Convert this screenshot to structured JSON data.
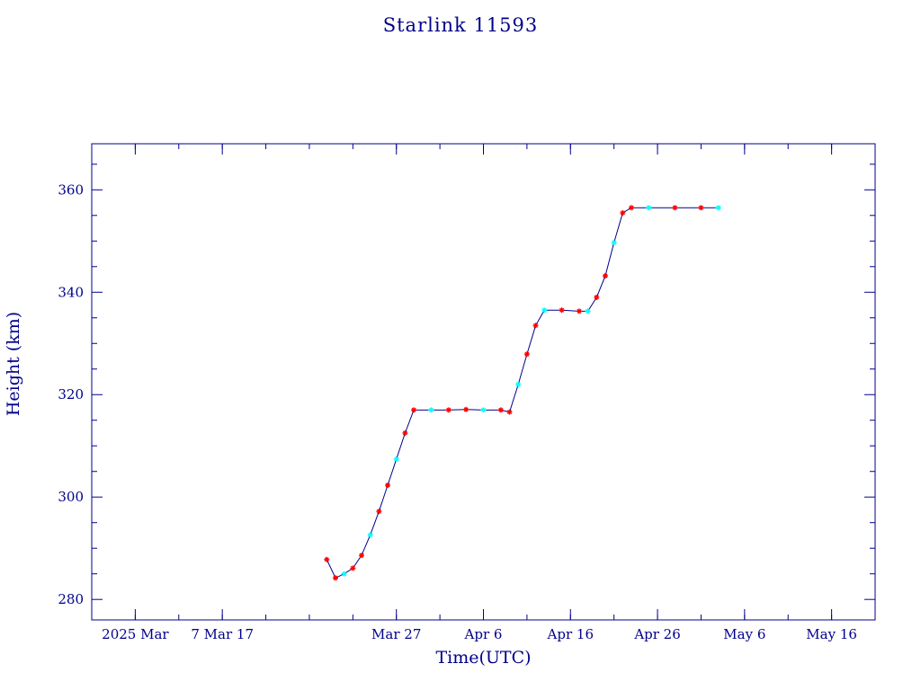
{
  "chart_data": {
    "type": "scatter",
    "title": "Starlink 11593",
    "xlabel": "Time(UTC)",
    "ylabel": "Height (km)",
    "xlim": [
      "2025-02-20",
      "2025-05-21"
    ],
    "ylim": [
      276,
      369
    ],
    "x_ticks": [
      {
        "date": "2025-02-25",
        "label": "2025 Mar"
      },
      {
        "date": "2025-03-07",
        "label": "7 Mar 17"
      },
      {
        "date": "2025-03-27",
        "label": "Mar 27"
      },
      {
        "date": "2025-04-06",
        "label": "Apr  6"
      },
      {
        "date": "2025-04-16",
        "label": "Apr 16"
      },
      {
        "date": "2025-04-26",
        "label": "Apr 26"
      },
      {
        "date": "2025-05-06",
        "label": "May  6"
      },
      {
        "date": "2025-05-16",
        "label": "May 16"
      }
    ],
    "y_ticks": [
      280,
      300,
      320,
      340,
      360
    ],
    "colors": {
      "axis": "#00008b",
      "line": "#00008b",
      "primary_marker": "#ff0000",
      "secondary_marker": "#00ffff"
    },
    "series": [
      {
        "values": [
          [
            "2025-03-19",
            287.8
          ],
          [
            "2025-03-20",
            284.2
          ],
          [
            "2025-03-21",
            285.0
          ],
          [
            "2025-03-22",
            286.1
          ],
          [
            "2025-03-23",
            288.6
          ],
          [
            "2025-03-24",
            292.6
          ],
          [
            "2025-03-25",
            297.2
          ],
          [
            "2025-03-26",
            302.3
          ],
          [
            "2025-03-27",
            307.4
          ],
          [
            "2025-03-28",
            312.5
          ],
          [
            "2025-03-29",
            317.0
          ],
          [
            "2025-03-31",
            317.0
          ],
          [
            "2025-04-02",
            317.0
          ],
          [
            "2025-04-04",
            317.1
          ],
          [
            "2025-04-06",
            317.0
          ],
          [
            "2025-04-08",
            317.0
          ],
          [
            "2025-04-09",
            316.6
          ],
          [
            "2025-04-10",
            322.0
          ],
          [
            "2025-04-11",
            327.9
          ],
          [
            "2025-04-12",
            333.5
          ],
          [
            "2025-04-13",
            336.5
          ],
          [
            "2025-04-15",
            336.5
          ],
          [
            "2025-04-17",
            336.3
          ],
          [
            "2025-04-18",
            336.3
          ],
          [
            "2025-04-19",
            339.0
          ],
          [
            "2025-04-20",
            343.2
          ],
          [
            "2025-04-21",
            349.7
          ],
          [
            "2025-04-22",
            355.5
          ],
          [
            "2025-04-23",
            356.5
          ],
          [
            "2025-04-25",
            356.5
          ],
          [
            "2025-04-28",
            356.5
          ],
          [
            "2025-05-01",
            356.5
          ],
          [
            "2025-05-03",
            356.5
          ]
        ]
      }
    ]
  }
}
